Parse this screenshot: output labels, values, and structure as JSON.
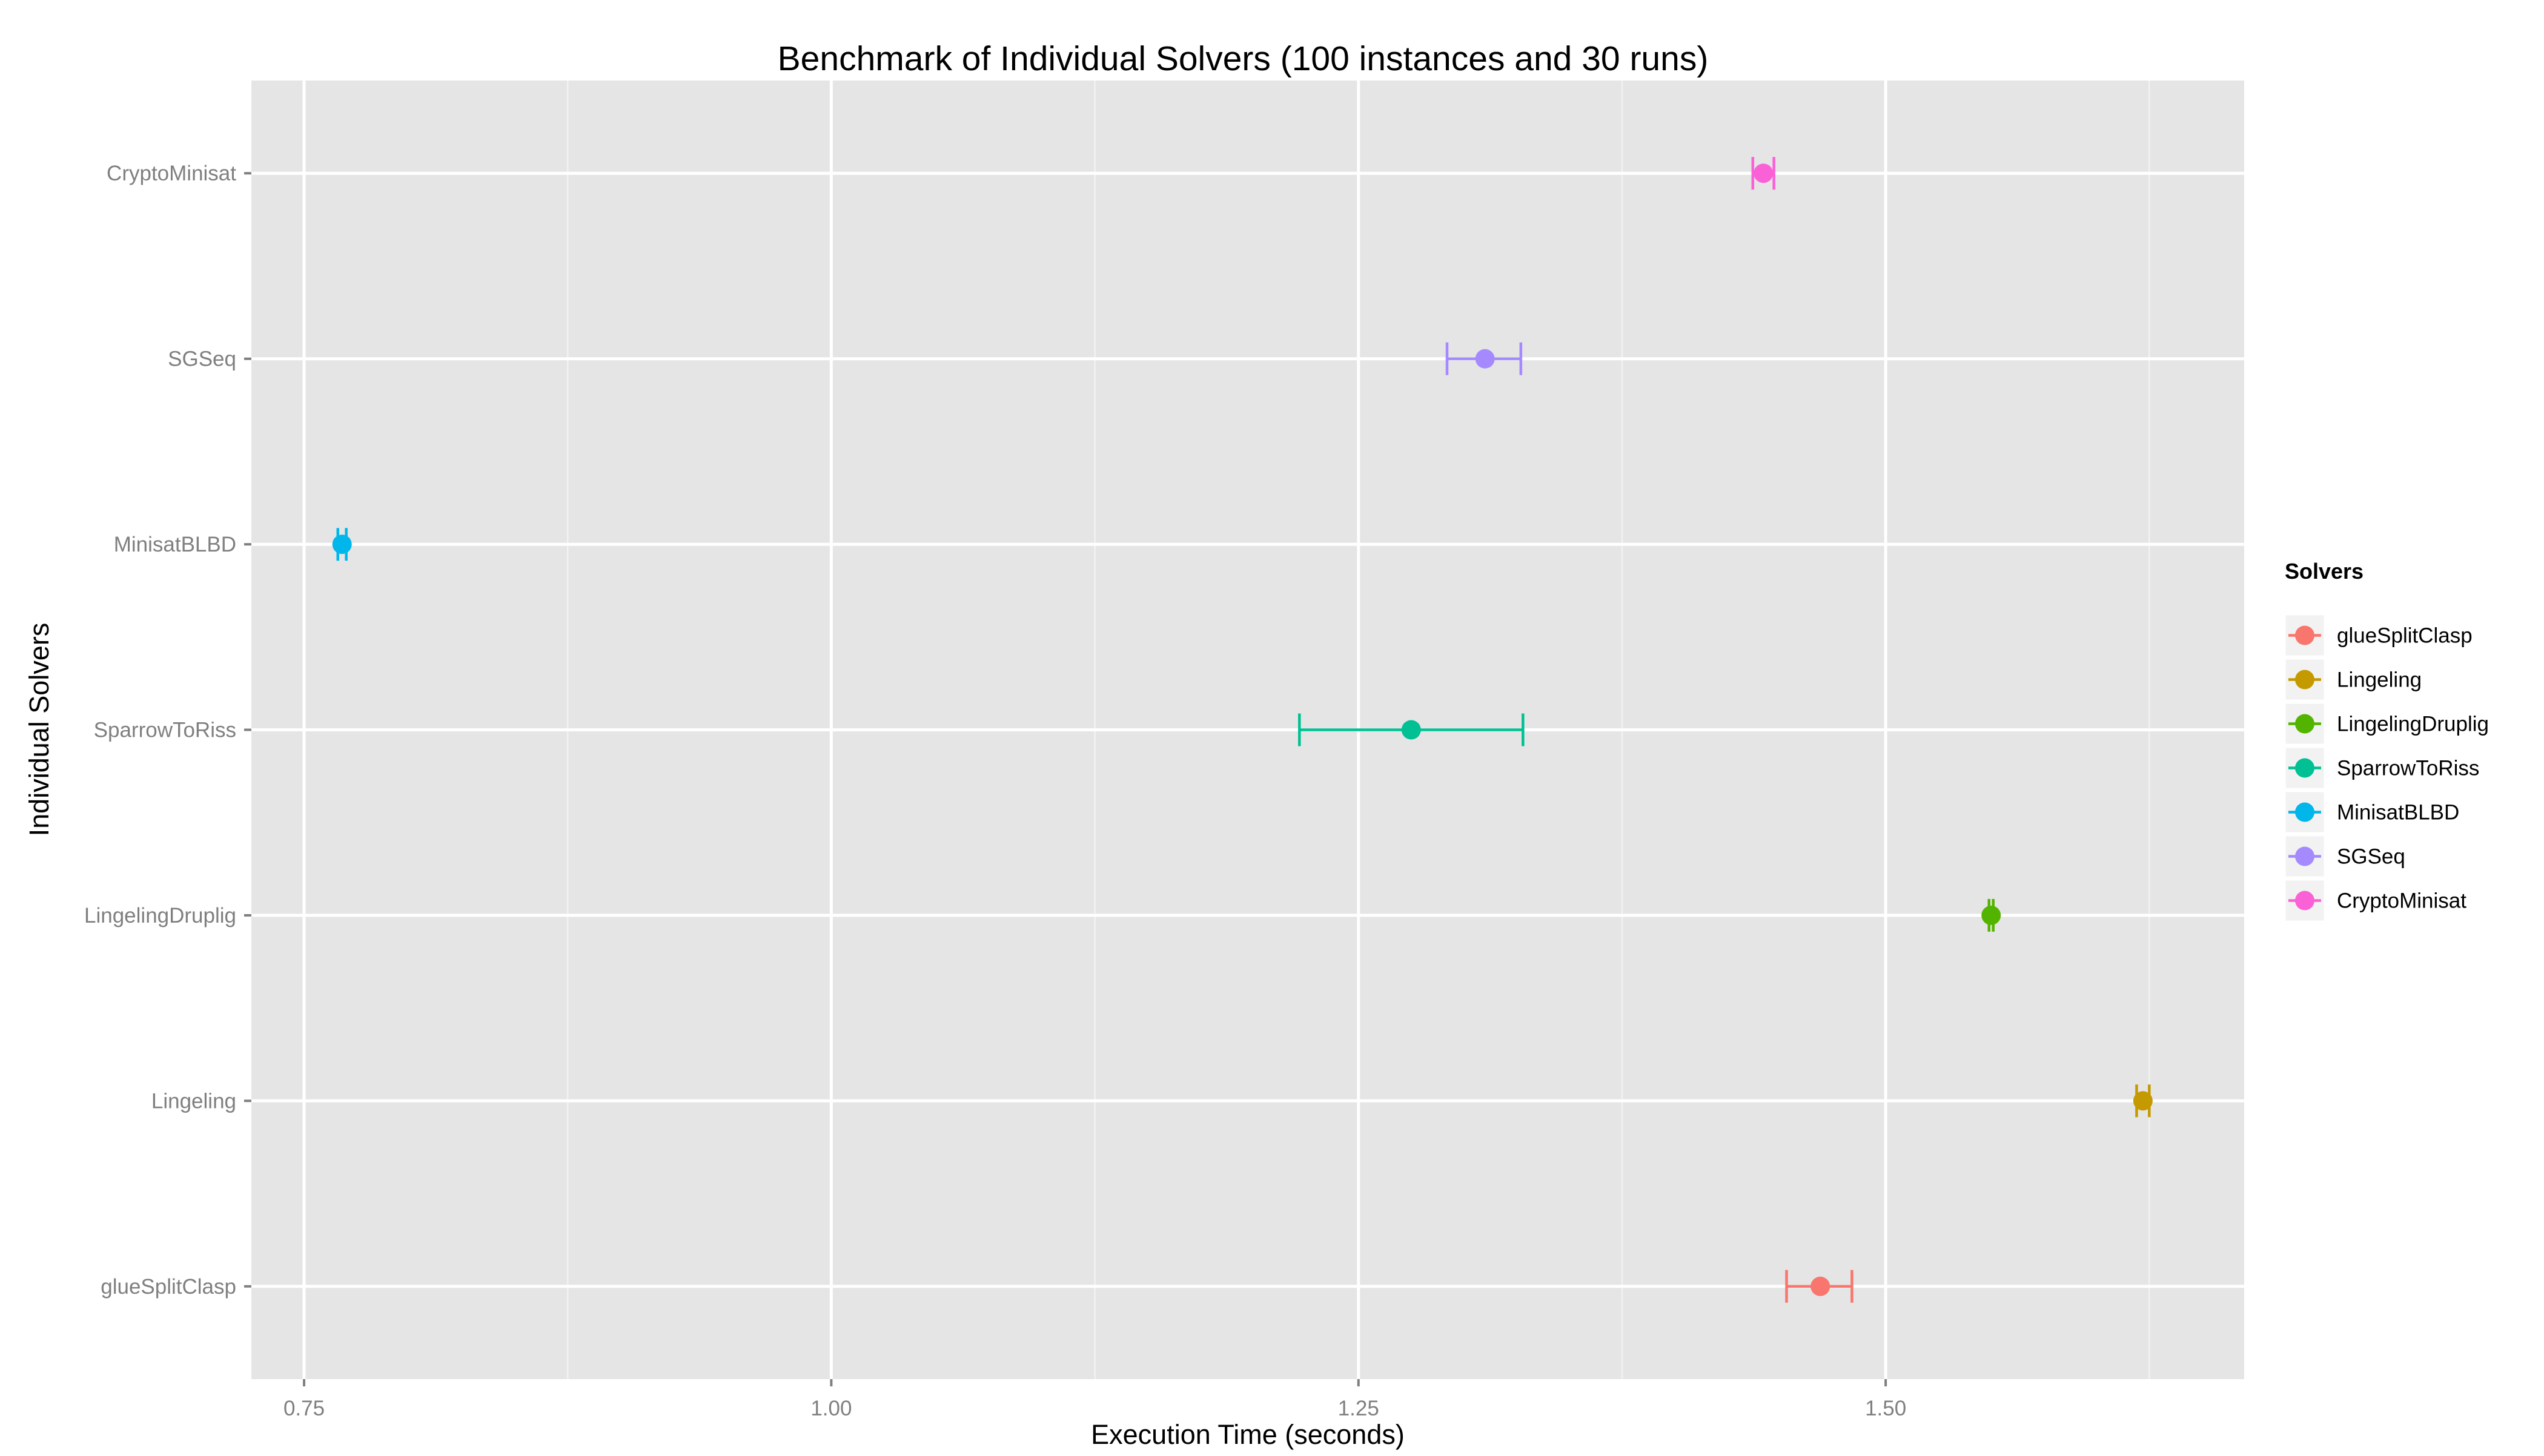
{
  "chart_data": {
    "type": "scatter",
    "title": "Benchmark of Individual Solvers (100 instances and 30 runs)",
    "xlabel": "Execution Time (seconds)",
    "ylabel": "Individual Solvers",
    "xlim": [
      0.725,
      1.67
    ],
    "x_ticks": [
      0.75,
      1.0,
      1.25,
      1.5
    ],
    "x_tick_labels": [
      "0.75",
      "1.00",
      "1.25",
      "1.50"
    ],
    "categories": [
      "glueSplitClasp",
      "Lingeling",
      "LingelingDruplig",
      "SparrowToRiss",
      "MinisatBLBD",
      "SGSeq",
      "CryptoMinisat"
    ],
    "series": [
      {
        "name": "glueSplitClasp",
        "category": "glueSplitClasp",
        "x": 1.469,
        "xmin": 1.453,
        "xmax": 1.484,
        "color": "#F8766D"
      },
      {
        "name": "Lingeling",
        "category": "Lingeling",
        "x": 1.622,
        "xmin": 1.619,
        "xmax": 1.625,
        "color": "#C49A00"
      },
      {
        "name": "LingelingDruplig",
        "category": "LingelingDruplig",
        "x": 1.55,
        "xmin": 1.549,
        "xmax": 1.551,
        "color": "#53B400"
      },
      {
        "name": "SparrowToRiss",
        "category": "SparrowToRiss",
        "x": 1.275,
        "xmin": 1.222,
        "xmax": 1.328,
        "color": "#00C094"
      },
      {
        "name": "MinisatBLBD",
        "category": "MinisatBLBD",
        "x": 0.768,
        "xmin": 0.766,
        "xmax": 0.77,
        "color": "#00B6EB"
      },
      {
        "name": "SGSeq",
        "category": "SGSeq",
        "x": 1.31,
        "xmin": 1.292,
        "xmax": 1.327,
        "color": "#A58AFF"
      },
      {
        "name": "CryptoMinisat",
        "category": "CryptoMinisat",
        "x": 1.442,
        "xmin": 1.437,
        "xmax": 1.447,
        "color": "#FB61D7"
      }
    ],
    "legend": {
      "title": "Solvers",
      "placement": "right",
      "entries": [
        "glueSplitClasp",
        "Lingeling",
        "LingelingDruplig",
        "SparrowToRiss",
        "MinisatBLBD",
        "SGSeq",
        "CryptoMinisat"
      ]
    },
    "grid": true,
    "panel_background": "#E5E5E5",
    "grid_color": "#FFFFFF"
  }
}
